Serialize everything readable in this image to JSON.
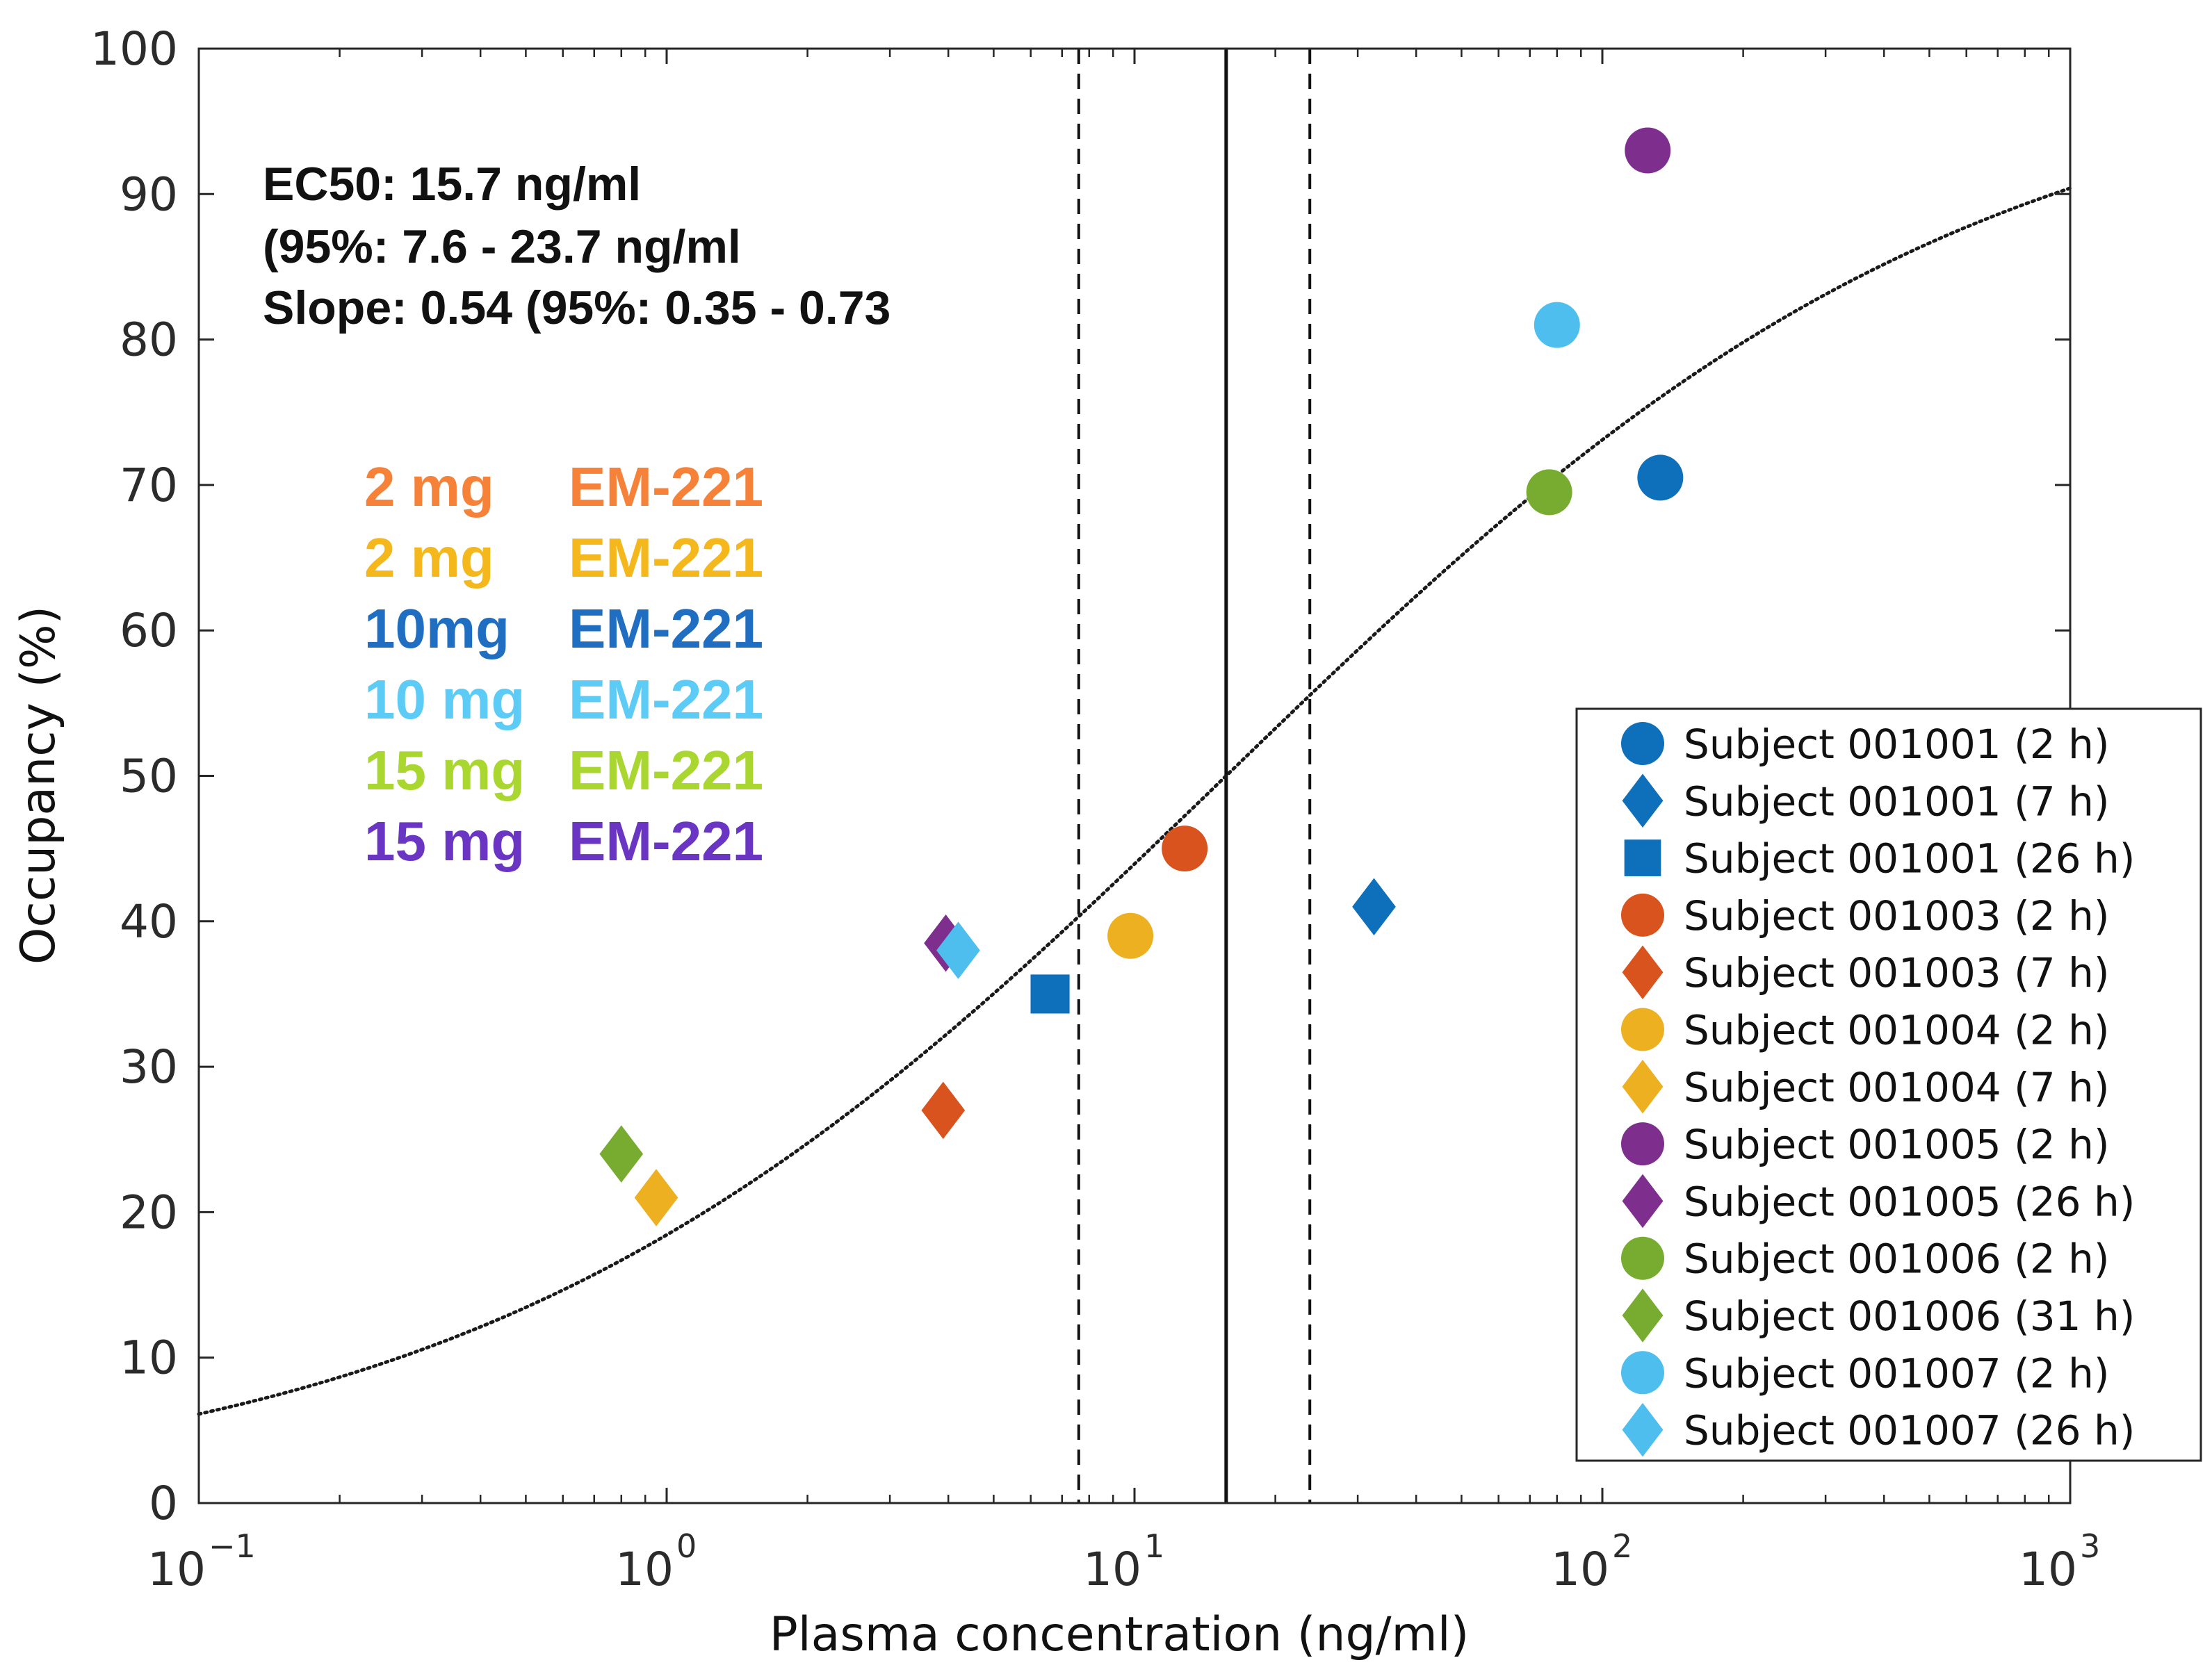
{
  "chart_data": {
    "type": "scatter",
    "xscale": "log",
    "xlabel": "Plasma concentration (ng/ml)",
    "ylabel": "Occupancy (%)",
    "xlim": [
      0.1,
      1000
    ],
    "ylim": [
      0,
      100
    ],
    "y_ticks": [
      "0",
      "10",
      "20",
      "30",
      "40",
      "50",
      "60",
      "70",
      "80",
      "90",
      "100"
    ],
    "x_ticks": [
      {
        "base": "10",
        "exp": "−1",
        "value": 0.1
      },
      {
        "base": "10",
        "exp": "0",
        "value": 1
      },
      {
        "base": "10",
        "exp": "1",
        "value": 10
      },
      {
        "base": "10",
        "exp": "2",
        "value": 100
      },
      {
        "base": "10",
        "exp": "3",
        "value": 1000
      }
    ],
    "annotations": [
      "EC50: 15.7 ng/ml",
      "(95%: 7.6 - 23.7 ng/ml",
      "Slope: 0.54 (95%: 0.35 - 0.73"
    ],
    "dose_labels": [
      {
        "dose": "2 mg",
        "drug": "EM-221",
        "color": "#F58238"
      },
      {
        "dose": "2 mg",
        "drug": "EM-221",
        "color": "#F5B81C"
      },
      {
        "dose": "10mg",
        "drug": "EM-221",
        "color": "#1F6EC2"
      },
      {
        "dose": "10 mg",
        "drug": "EM-221",
        "color": "#5CCBF5"
      },
      {
        "dose": "15 mg",
        "drug": "EM-221",
        "color": "#A9D62F"
      },
      {
        "dose": "15 mg",
        "drug": "EM-221",
        "color": "#6A35C2"
      }
    ],
    "reference_lines": [
      {
        "x": 15.7,
        "style": "solid"
      },
      {
        "x": 7.6,
        "style": "dashed"
      },
      {
        "x": 23.7,
        "style": "dashed"
      }
    ],
    "fit_curve": {
      "ec50": 15.7,
      "slope": 0.54,
      "style": "dotted"
    },
    "series": [
      {
        "name": "Subject 001001 (2 h)",
        "marker": "circle",
        "color": "#0E6FBB",
        "x": 133,
        "y": 70.5
      },
      {
        "name": "Subject 001001 (7 h)",
        "marker": "diamond",
        "color": "#0E6FBB",
        "x": 32.5,
        "y": 41
      },
      {
        "name": "Subject 001001 (26 h)",
        "marker": "square",
        "color": "#0E6FBB",
        "x": 6.6,
        "y": 35
      },
      {
        "name": "Subject 001003 (2 h)",
        "marker": "circle",
        "color": "#D9531E",
        "x": 12.8,
        "y": 45
      },
      {
        "name": "Subject 001003 (7 h)",
        "marker": "diamond",
        "color": "#D9531E",
        "x": 3.9,
        "y": 27
      },
      {
        "name": "Subject 001004 (2 h)",
        "marker": "circle",
        "color": "#EDB021",
        "x": 9.8,
        "y": 39
      },
      {
        "name": "Subject 001004 (7 h)",
        "marker": "diamond",
        "color": "#EDB021",
        "x": 0.95,
        "y": 21
      },
      {
        "name": "Subject 001005 (2 h)",
        "marker": "circle",
        "color": "#7E2F8E",
        "x": 125,
        "y": 93
      },
      {
        "name": "Subject 001005 (26 h)",
        "marker": "diamond",
        "color": "#7E2F8E",
        "x": 3.95,
        "y": 38.5
      },
      {
        "name": "Subject 001006 (2 h)",
        "marker": "circle",
        "color": "#77AC30",
        "x": 77,
        "y": 69.5
      },
      {
        "name": "Subject 001006 (31 h)",
        "marker": "diamond",
        "color": "#77AC30",
        "x": 0.8,
        "y": 24
      },
      {
        "name": "Subject 001007 (2 h)",
        "marker": "circle",
        "color": "#4DBEEE",
        "x": 80,
        "y": 81
      },
      {
        "name": "Subject 001007 (26 h)",
        "marker": "diamond",
        "color": "#4DBEEE",
        "x": 4.2,
        "y": 38
      }
    ]
  }
}
